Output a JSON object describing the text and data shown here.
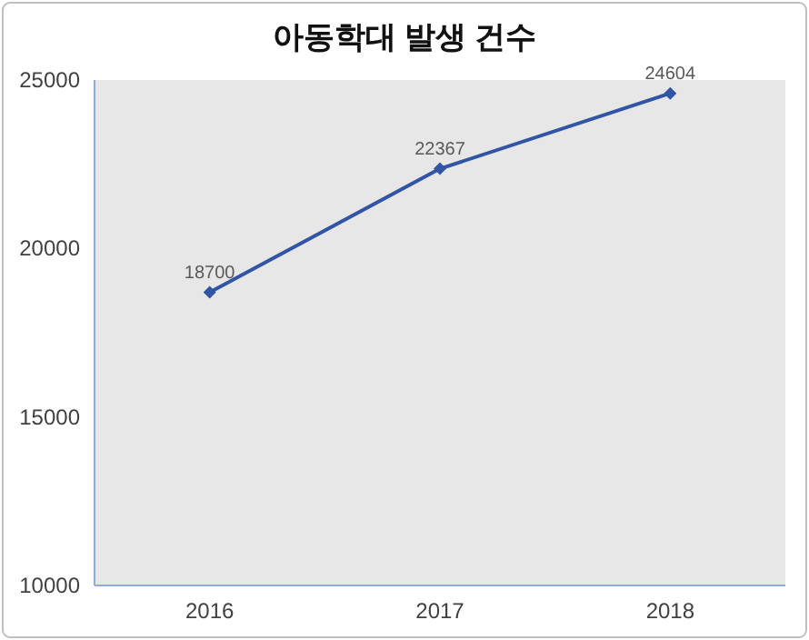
{
  "chart_data": {
    "type": "line",
    "title": "아동학대 발생 건수",
    "categories": [
      "2016",
      "2017",
      "2018"
    ],
    "values": [
      18700,
      22367,
      24604
    ],
    "color": "#3155a4",
    "marker": "diamond",
    "data_labels": true,
    "ylim": [
      10000,
      25000
    ],
    "yticks": [
      10000,
      15000,
      20000,
      25000
    ]
  }
}
